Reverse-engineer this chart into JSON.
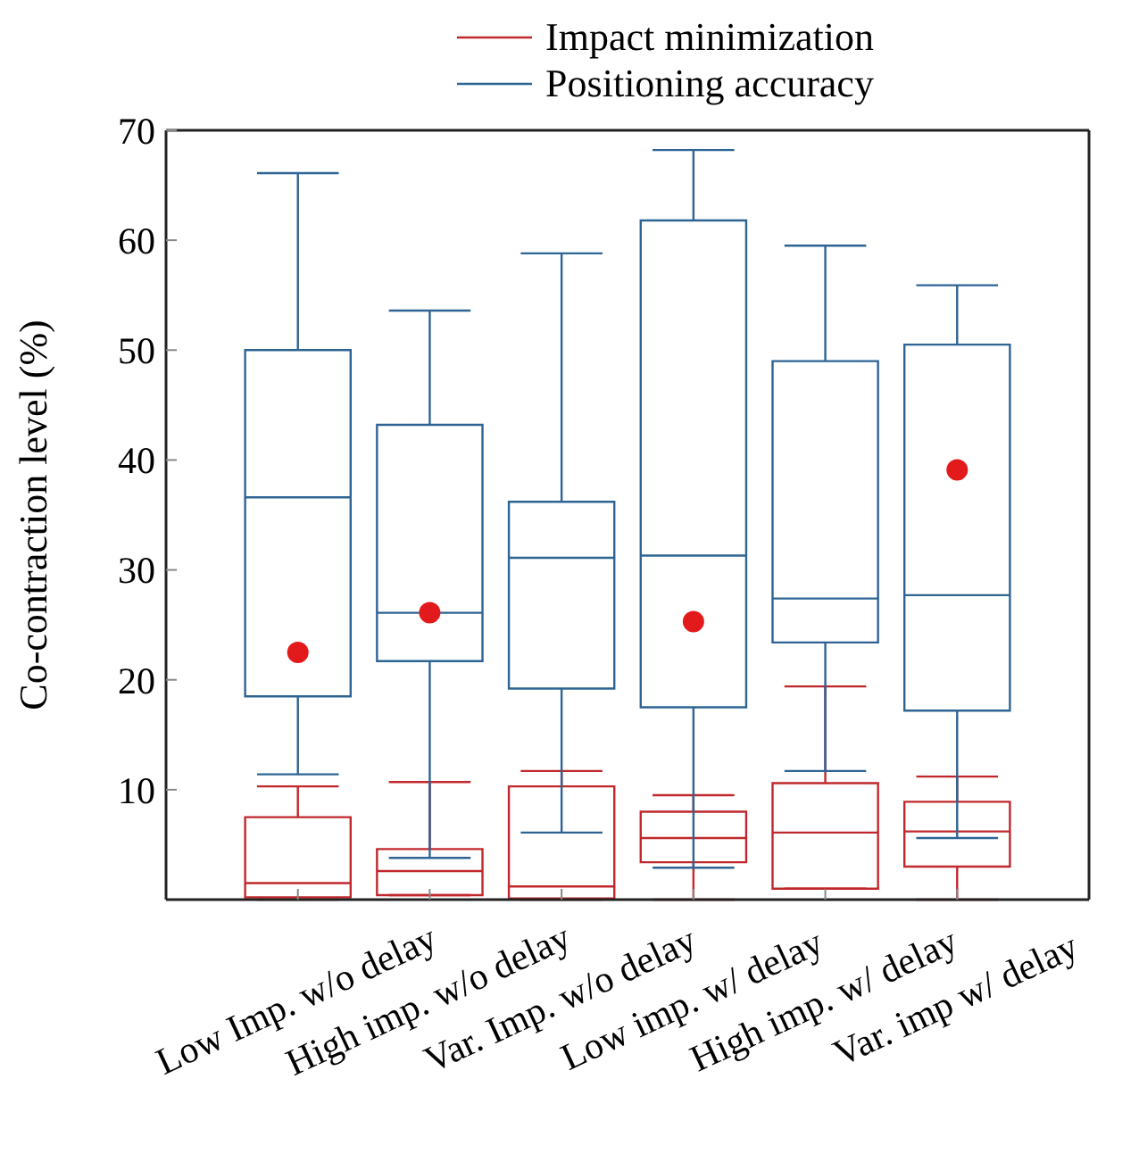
{
  "chart_data": {
    "type": "box",
    "ylabel": "Co-contraction level (%)",
    "categories": [
      "Low Imp. w/o delay",
      "High imp. w/o delay",
      "Var. Imp. w/o delay",
      "Low imp. w/ delay",
      "High imp. w/ delay",
      "Var. imp w/ delay"
    ],
    "series": [
      {
        "name": "Impact minimization",
        "color": "#c0282d",
        "boxes": [
          {
            "low": 0,
            "q1": 0.2,
            "median": 1.5,
            "q3": 7.5,
            "high": 10.3
          },
          {
            "low": 0.4,
            "q1": 0.4,
            "median": 2.6,
            "q3": 4.6,
            "high": 10.7
          },
          {
            "low": 0,
            "q1": 0.1,
            "median": 1.2,
            "q3": 10.3,
            "high": 11.7
          },
          {
            "low": 0,
            "q1": 3.4,
            "median": 5.6,
            "q3": 8.0,
            "high": 9.5
          },
          {
            "low": 1.0,
            "q1": 1.0,
            "median": 6.1,
            "q3": 10.6,
            "high": 19.4
          },
          {
            "low": 0,
            "q1": 3.0,
            "median": 6.2,
            "q3": 8.9,
            "high": 11.2
          }
        ]
      },
      {
        "name": "Positioning accuracy",
        "color": "#2e6494",
        "boxes": [
          {
            "low": 11.4,
            "q1": 18.5,
            "median": 36.6,
            "q3": 50.0,
            "high": 66.1
          },
          {
            "low": 3.8,
            "q1": 21.7,
            "median": 26.1,
            "q3": 43.2,
            "high": 53.6
          },
          {
            "low": 6.1,
            "q1": 19.2,
            "median": 31.1,
            "q3": 36.2,
            "high": 58.8
          },
          {
            "low": 2.9,
            "q1": 17.5,
            "median": 31.3,
            "q3": 61.8,
            "high": 68.2
          },
          {
            "low": 11.7,
            "q1": 23.4,
            "median": 27.4,
            "q3": 49.0,
            "high": 59.5
          },
          {
            "low": 5.6,
            "q1": 17.2,
            "median": 27.7,
            "q3": 50.5,
            "high": 55.9
          }
        ]
      },
      {
        "type": "scatter",
        "color": "#e31a1c",
        "x": [
          "Low Imp. w/o delay",
          "High imp. w/o delay",
          "Low imp. w/ delay",
          "Var. imp w/ delay"
        ],
        "values": [
          22.5,
          26.1,
          25.3,
          39.1
        ]
      }
    ],
    "ylim": [
      0,
      70
    ],
    "yticks": [
      10,
      20,
      30,
      40,
      50,
      60,
      70
    ],
    "grid": false,
    "legend": "top",
    "marker": "circle"
  }
}
